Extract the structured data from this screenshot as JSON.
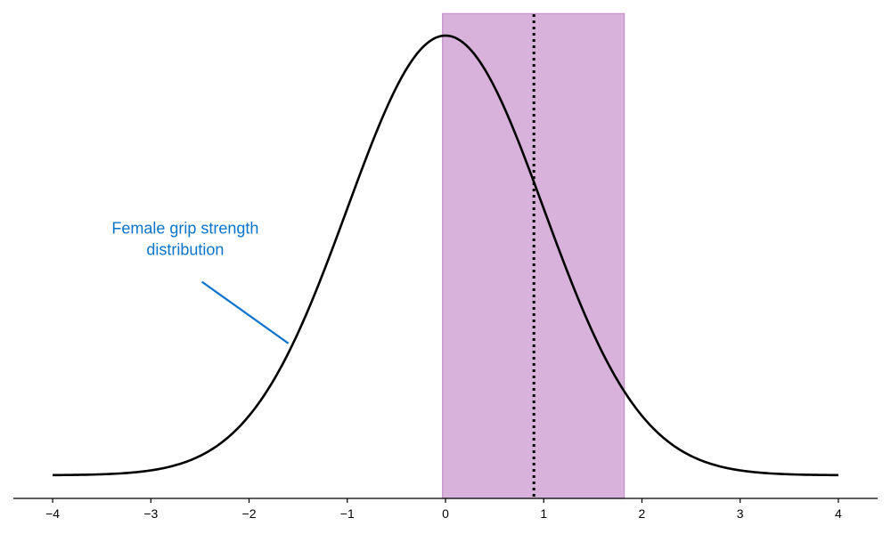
{
  "chart_data": {
    "type": "line",
    "title": "",
    "xlabel": "",
    "ylabel": "",
    "xlim": [
      -4.4,
      4.4
    ],
    "ylim": [
      0,
      1.1
    ],
    "x_ticks": [
      -4,
      -3,
      -2,
      -1,
      0,
      1,
      2,
      3,
      4
    ],
    "x_tick_labels": [
      "−4",
      "−3",
      "−2",
      "−1",
      "0",
      "1",
      "2",
      "3",
      "4"
    ],
    "grid": false,
    "y_axis_visible": false,
    "series": [
      {
        "kind": "normal-density",
        "x_range": [
          -4,
          4
        ],
        "mean": 0,
        "sd": 1,
        "peak": 1,
        "color": "#000000"
      }
    ],
    "shaded_band": {
      "x_start": -0.03,
      "x_end": 1.82,
      "y_top": 1.05,
      "color": "#d8b2da",
      "edge_color": "#c38fc8"
    },
    "vertical_line": {
      "x": 0.9,
      "style": "dotted",
      "color": "#000000"
    },
    "annotation": {
      "lines": [
        "Female grip strength",
        "distribution"
      ],
      "color": "#0a74cc",
      "text_anchor": [
        -2.65,
        0.55
      ],
      "arrow_from": [
        -2.48,
        0.44
      ],
      "arrow_to": [
        -1.6,
        0.3
      ]
    }
  }
}
